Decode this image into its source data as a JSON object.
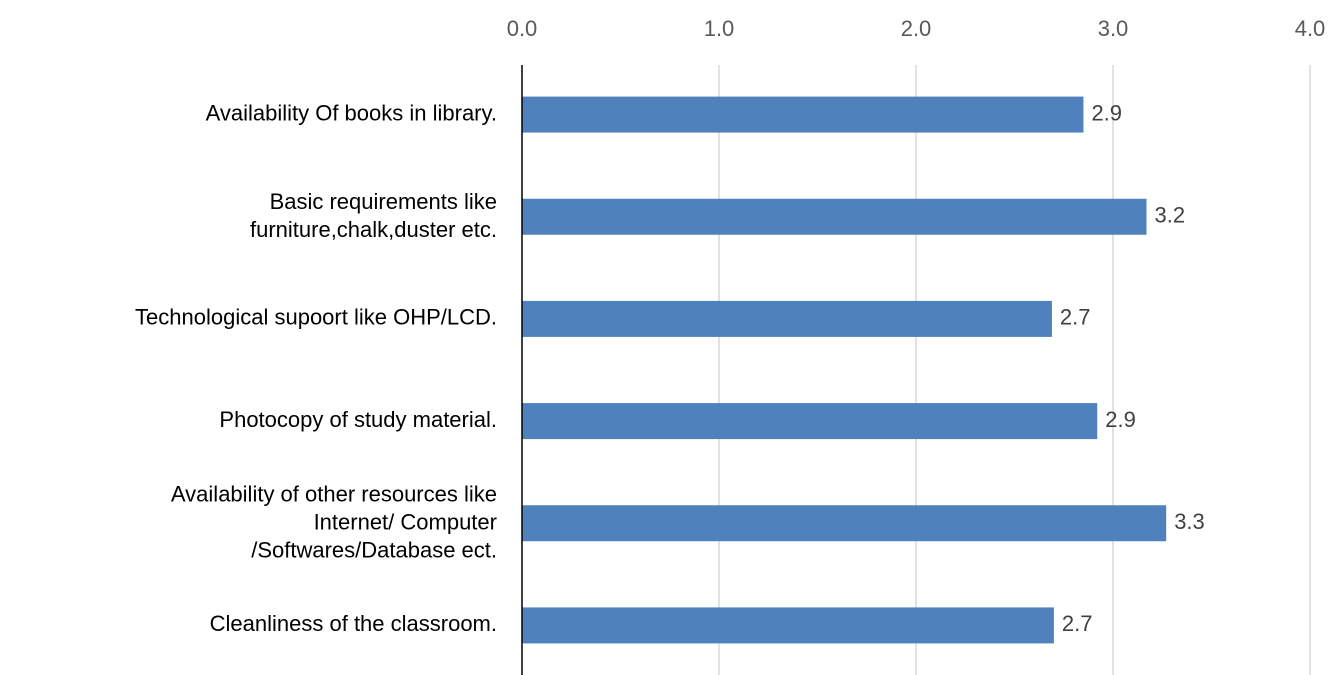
{
  "chart_data": {
    "type": "bar",
    "orientation": "horizontal",
    "categories": [
      "Availability Of books in library.",
      "Basic requirements like\nfurniture,chalk,duster etc.",
      "Technological supoort like OHP/LCD.",
      "Photocopy of study material.",
      "Availability of other resources like\nInternet/ Computer\n/Softwares/Database ect.",
      "Cleanliness of the classroom."
    ],
    "values": [
      2.85,
      3.17,
      2.69,
      2.92,
      3.27,
      2.7
    ],
    "value_labels": [
      "2.9",
      "3.2",
      "2.7",
      "2.9",
      "3.3",
      "2.7"
    ],
    "color": "#4f81bd",
    "xlim": [
      0,
      4
    ],
    "xticks": [
      {
        "value": 0,
        "label": "0.0"
      },
      {
        "value": 1,
        "label": "1.0"
      },
      {
        "value": 2,
        "label": "2.0"
      },
      {
        "value": 3,
        "label": "3.0"
      },
      {
        "value": 4,
        "label": "4.0"
      }
    ],
    "grid": true
  }
}
